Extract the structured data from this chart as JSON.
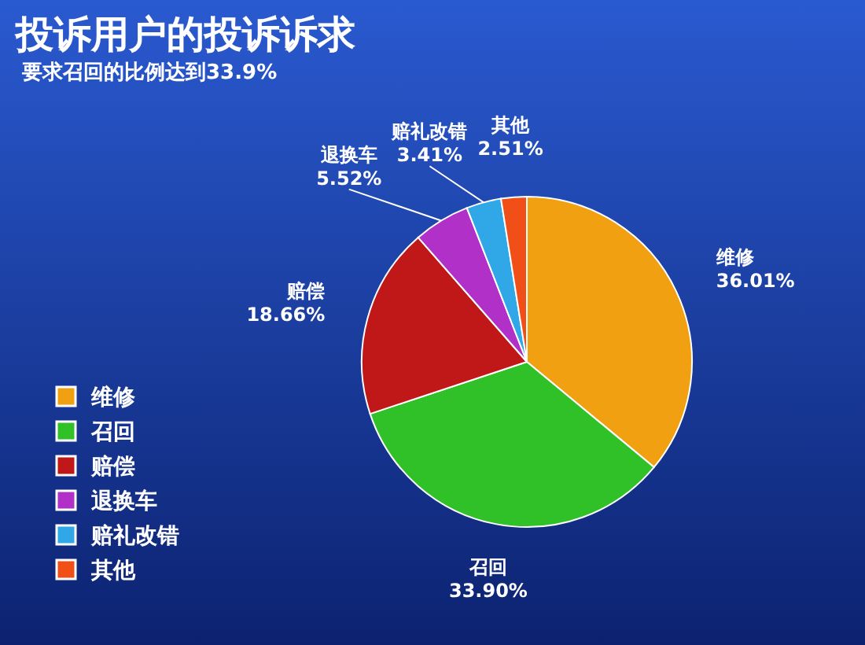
{
  "chart_data": {
    "type": "pie",
    "title": "投诉用户的投诉诉求",
    "subtitle": "要求召回的比例达到33.9%",
    "categories": [
      "维修",
      "召回",
      "赔偿",
      "退换车",
      "赔礼改错",
      "其他"
    ],
    "values": [
      36.01,
      33.9,
      18.66,
      5.52,
      3.41,
      2.51
    ],
    "value_labels": [
      "36.01%",
      "33.90%",
      "18.66%",
      "5.52%",
      "3.41%",
      "2.51%"
    ],
    "colors": [
      "#f0a010",
      "#30c028",
      "#c01818",
      "#b030c8",
      "#30a8e8",
      "#f05018"
    ],
    "legend": "bottom left"
  }
}
